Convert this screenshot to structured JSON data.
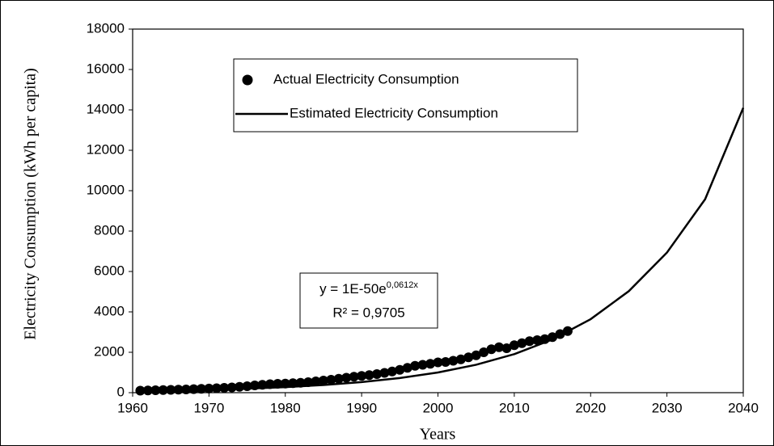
{
  "chart_data": {
    "type": "scatter",
    "x_label": "Years",
    "y_label": "Electricity Consumption (kWh per capita)",
    "xlim": [
      1960,
      2040
    ],
    "xticks": [
      1960,
      1970,
      1980,
      1990,
      2000,
      2010,
      2020,
      2030,
      2040
    ],
    "ylim": [
      0,
      18000
    ],
    "yticks": [
      0,
      2000,
      4000,
      6000,
      8000,
      10000,
      12000,
      14000,
      16000,
      18000
    ],
    "series": [
      {
        "name": "Actual Electricity Consumption",
        "type": "scatter",
        "color": "#000000",
        "x": [
          1961,
          1962,
          1963,
          1964,
          1965,
          1966,
          1967,
          1968,
          1969,
          1970,
          1971,
          1972,
          1973,
          1974,
          1975,
          1976,
          1977,
          1978,
          1979,
          1980,
          1981,
          1982,
          1983,
          1984,
          1985,
          1986,
          1987,
          1988,
          1989,
          1990,
          1991,
          1992,
          1993,
          1994,
          1995,
          1996,
          1997,
          1998,
          1999,
          2000,
          2001,
          2002,
          2003,
          2004,
          2005,
          2006,
          2007,
          2008,
          2009,
          2010,
          2011,
          2012,
          2013,
          2014,
          2015,
          2016,
          2017
        ],
        "values": [
          100,
          110,
          120,
          130,
          140,
          150,
          160,
          175,
          190,
          205,
          220,
          240,
          260,
          290,
          320,
          360,
          390,
          420,
          440,
          450,
          470,
          490,
          520,
          560,
          600,
          640,
          690,
          740,
          790,
          830,
          870,
          920,
          980,
          1050,
          1130,
          1230,
          1330,
          1380,
          1430,
          1500,
          1520,
          1580,
          1650,
          1750,
          1850,
          2000,
          2150,
          2250,
          2200,
          2350,
          2450,
          2550,
          2600,
          2650,
          2750,
          2900,
          3050
        ]
      },
      {
        "name": "Estimated Electricity Consumption",
        "type": "line",
        "color": "#000000",
        "x": [
          1961,
          1965,
          1970,
          1975,
          1980,
          1985,
          1990,
          1995,
          2000,
          2005,
          2010,
          2015,
          2020,
          2025,
          2030,
          2035,
          2040
        ],
        "values": [
          86,
          105,
          145,
          200,
          276,
          381,
          526,
          725,
          1001,
          1383,
          1909,
          2635,
          3638,
          5024,
          6936,
          9575,
          14100
        ]
      }
    ],
    "annotation": {
      "equation": "y = 1E-50e",
      "equation_superscript": "0,0612x",
      "r_squared": "R² = 0,9705"
    }
  }
}
